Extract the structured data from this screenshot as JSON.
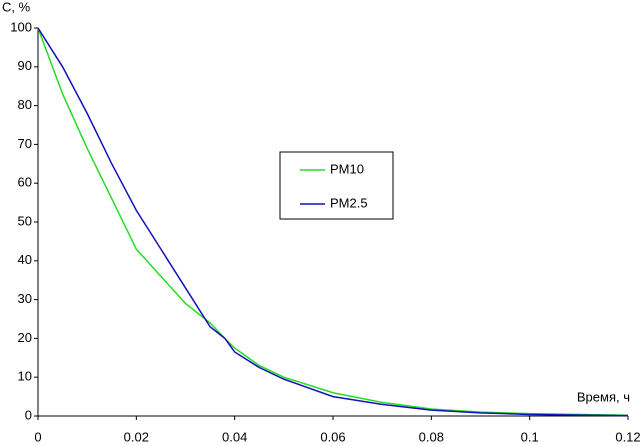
{
  "chart_data": {
    "type": "line",
    "y_label": "C, %",
    "x_label": "Время, ч",
    "x": [
      0,
      0.005,
      0.01,
      0.015,
      0.02,
      0.025,
      0.03,
      0.035,
      0.038,
      0.04,
      0.045,
      0.05,
      0.06,
      0.07,
      0.08,
      0.09,
      0.1,
      0.12
    ],
    "series": [
      {
        "name": "PM10",
        "color": "#22dd22",
        "values": [
          100,
          83,
          69,
          56,
          43,
          36,
          29,
          24,
          20,
          17.5,
          13,
          10,
          6,
          3.5,
          1.8,
          1,
          0.6,
          0.2
        ]
      },
      {
        "name": "PM2.5",
        "color": "#1111bb",
        "values": [
          100,
          90,
          78,
          65,
          53,
          43,
          33,
          23,
          20,
          16.5,
          12.5,
          9.5,
          5,
          3,
          1.5,
          0.8,
          0.4,
          0.1
        ]
      }
    ],
    "xlim": [
      0,
      0.12
    ],
    "xticks": [
      0,
      0.02,
      0.04,
      0.06,
      0.08,
      0.1,
      0.12
    ],
    "ylim": [
      0,
      100
    ],
    "yticks": [
      0,
      10,
      20,
      30,
      40,
      50,
      60,
      70,
      80,
      90,
      100
    ],
    "grid": false,
    "legend": "center"
  }
}
